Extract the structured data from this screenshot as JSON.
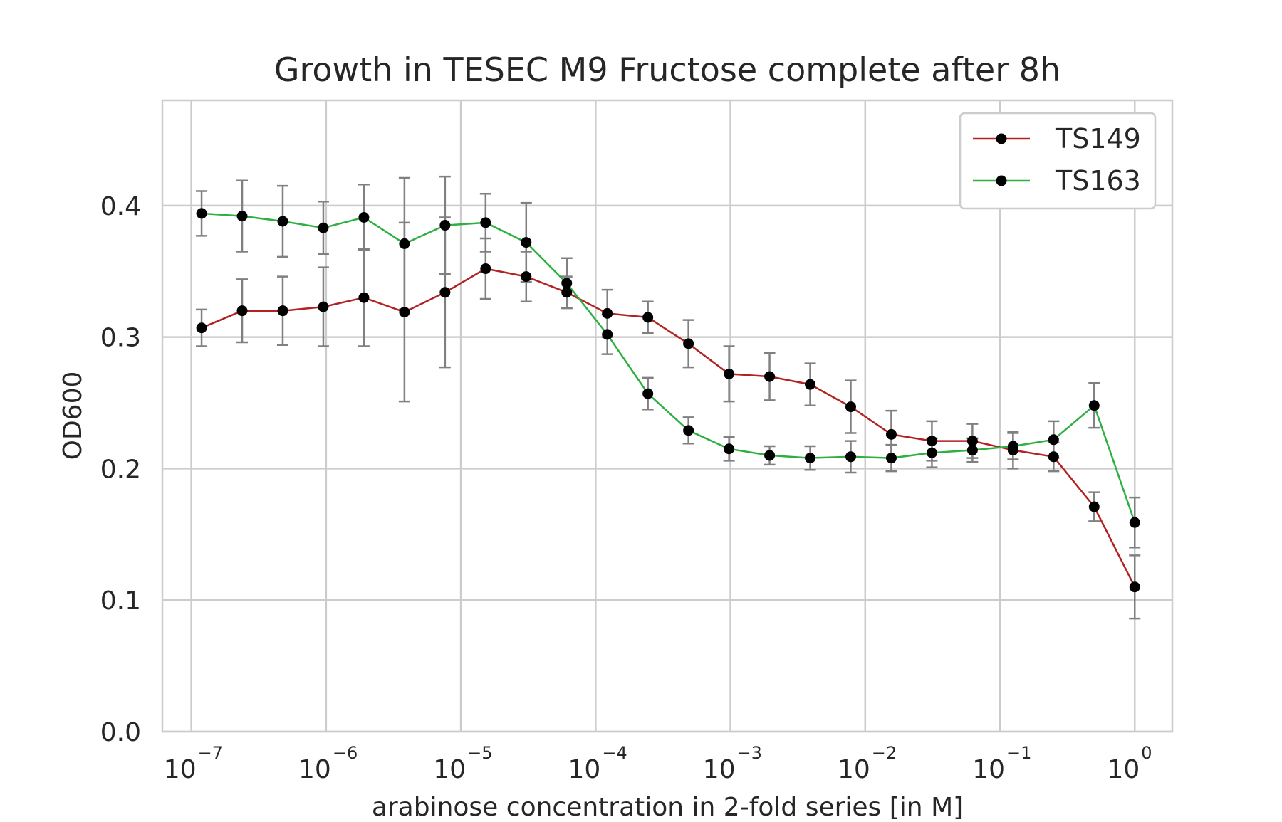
{
  "chart_data": {
    "type": "line",
    "title": "Growth in TESEC M9 Fructose complete after 8h",
    "xlabel": "arabinose concentration in 2-fold series [in M]",
    "ylabel": "OD600",
    "x_scale": "log",
    "xlim": [
      6.1e-08,
      1.9
    ],
    "ylim": [
      0,
      0.48
    ],
    "x_ticks": [
      {
        "value": 1e-07,
        "base": "10",
        "exp": "−7"
      },
      {
        "value": 1e-06,
        "base": "10",
        "exp": "−6"
      },
      {
        "value": 1e-05,
        "base": "10",
        "exp": "−5"
      },
      {
        "value": 0.0001,
        "base": "10",
        "exp": "−4"
      },
      {
        "value": 0.001,
        "base": "10",
        "exp": "−3"
      },
      {
        "value": 0.01,
        "base": "10",
        "exp": "−2"
      },
      {
        "value": 0.1,
        "base": "10",
        "exp": "−1"
      },
      {
        "value": 1,
        "base": "10",
        "exp": "0"
      }
    ],
    "y_ticks": [
      {
        "value": 0.0,
        "label": "0.0"
      },
      {
        "value": 0.1,
        "label": "0.1"
      },
      {
        "value": 0.2,
        "label": "0.2"
      },
      {
        "value": 0.3,
        "label": "0.3"
      },
      {
        "value": 0.4,
        "label": "0.4"
      }
    ],
    "grid": true,
    "legend_position": "top-right",
    "marker_color": "#000000",
    "errorbar_color": "#808080",
    "x": [
      1.1921e-07,
      2.3842e-07,
      4.7684e-07,
      9.5367e-07,
      1.9073e-06,
      3.8147e-06,
      7.6294e-06,
      1.5259e-05,
      3.0518e-05,
      6.1035e-05,
      0.00012207,
      0.00024414,
      0.00048828,
      0.00097656,
      0.0019531,
      0.0039063,
      0.0078125,
      0.015625,
      0.03125,
      0.0625,
      0.125,
      0.25,
      0.5,
      1.0
    ],
    "series": [
      {
        "name": "TS149",
        "color": "#b22222",
        "values": [
          0.307,
          0.32,
          0.32,
          0.323,
          0.33,
          0.319,
          0.334,
          0.352,
          0.346,
          0.334,
          0.318,
          0.315,
          0.295,
          0.272,
          0.27,
          0.264,
          0.247,
          0.226,
          0.221,
          0.221,
          0.214,
          0.209,
          0.171,
          0.11
        ],
        "errors": [
          0.014,
          0.024,
          0.026,
          0.03,
          0.037,
          0.068,
          0.057,
          0.023,
          0.019,
          0.012,
          0.018,
          0.012,
          0.018,
          0.021,
          0.018,
          0.016,
          0.02,
          0.018,
          0.015,
          0.013,
          0.014,
          0.011,
          0.011,
          0.024
        ]
      },
      {
        "name": "TS163",
        "color": "#2db040",
        "values": [
          0.394,
          0.392,
          0.388,
          0.383,
          0.391,
          0.371,
          0.385,
          0.387,
          0.372,
          0.341,
          0.302,
          0.257,
          0.229,
          0.215,
          0.21,
          0.208,
          0.209,
          0.208,
          0.212,
          0.214,
          0.217,
          0.222,
          0.248,
          0.159
        ]
      }
    ],
    "ts163_errors": [
      0.017,
      0.027,
      0.027,
      0.02,
      0.025,
      0.05,
      0.037,
      0.022,
      0.03,
      0.019,
      0.015,
      0.012,
      0.01,
      0.009,
      0.007,
      0.009,
      0.012,
      0.01,
      0.011,
      0.009,
      0.01,
      0.014,
      0.017,
      0.019
    ]
  }
}
